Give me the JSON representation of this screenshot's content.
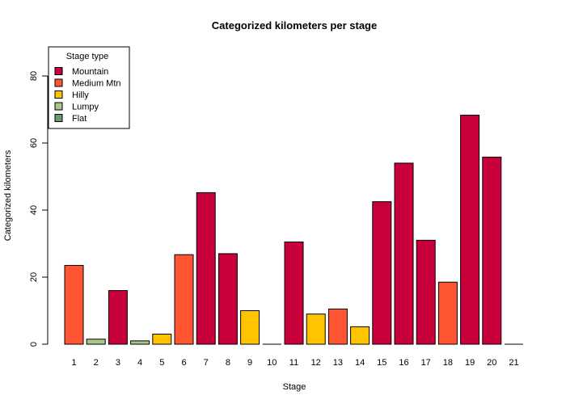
{
  "chart_data": {
    "type": "bar",
    "title": "Categorized kilometers per stage",
    "xlabel": "Stage",
    "ylabel": "Categorized kilometers",
    "ylim": [
      0,
      90
    ],
    "yticks": [
      0,
      20,
      40,
      60,
      80
    ],
    "categories": [
      "1",
      "2",
      "3",
      "4",
      "5",
      "6",
      "7",
      "8",
      "9",
      "10",
      "11",
      "12",
      "13",
      "14",
      "15",
      "16",
      "17",
      "18",
      "19",
      "20",
      "21"
    ],
    "values": [
      23.5,
      1.5,
      16.0,
      1.0,
      3.0,
      26.7,
      45.2,
      27.0,
      10.0,
      0.0,
      30.5,
      9.0,
      10.5,
      5.2,
      42.5,
      54.0,
      31.0,
      18.5,
      68.3,
      55.8,
      0.0
    ],
    "stage_types": [
      "Medium Mtn",
      "Lumpy",
      "Mountain",
      "Lumpy",
      "Hilly",
      "Medium Mtn",
      "Mountain",
      "Mountain",
      "Hilly",
      "Flat",
      "Mountain",
      "Hilly",
      "Medium Mtn",
      "Hilly",
      "Mountain",
      "Mountain",
      "Mountain",
      "Medium Mtn",
      "Mountain",
      "Mountain",
      "Flat"
    ],
    "legend": {
      "title": "Stage type",
      "position": "top-left",
      "items": [
        {
          "name": "Mountain",
          "color": "#c8003c"
        },
        {
          "name": "Medium Mtn",
          "color": "#ff5533"
        },
        {
          "name": "Hilly",
          "color": "#ffc400"
        },
        {
          "name": "Lumpy",
          "color": "#a8c58c"
        },
        {
          "name": "Flat",
          "color": "#6a9a6a"
        }
      ]
    },
    "grid": false
  }
}
